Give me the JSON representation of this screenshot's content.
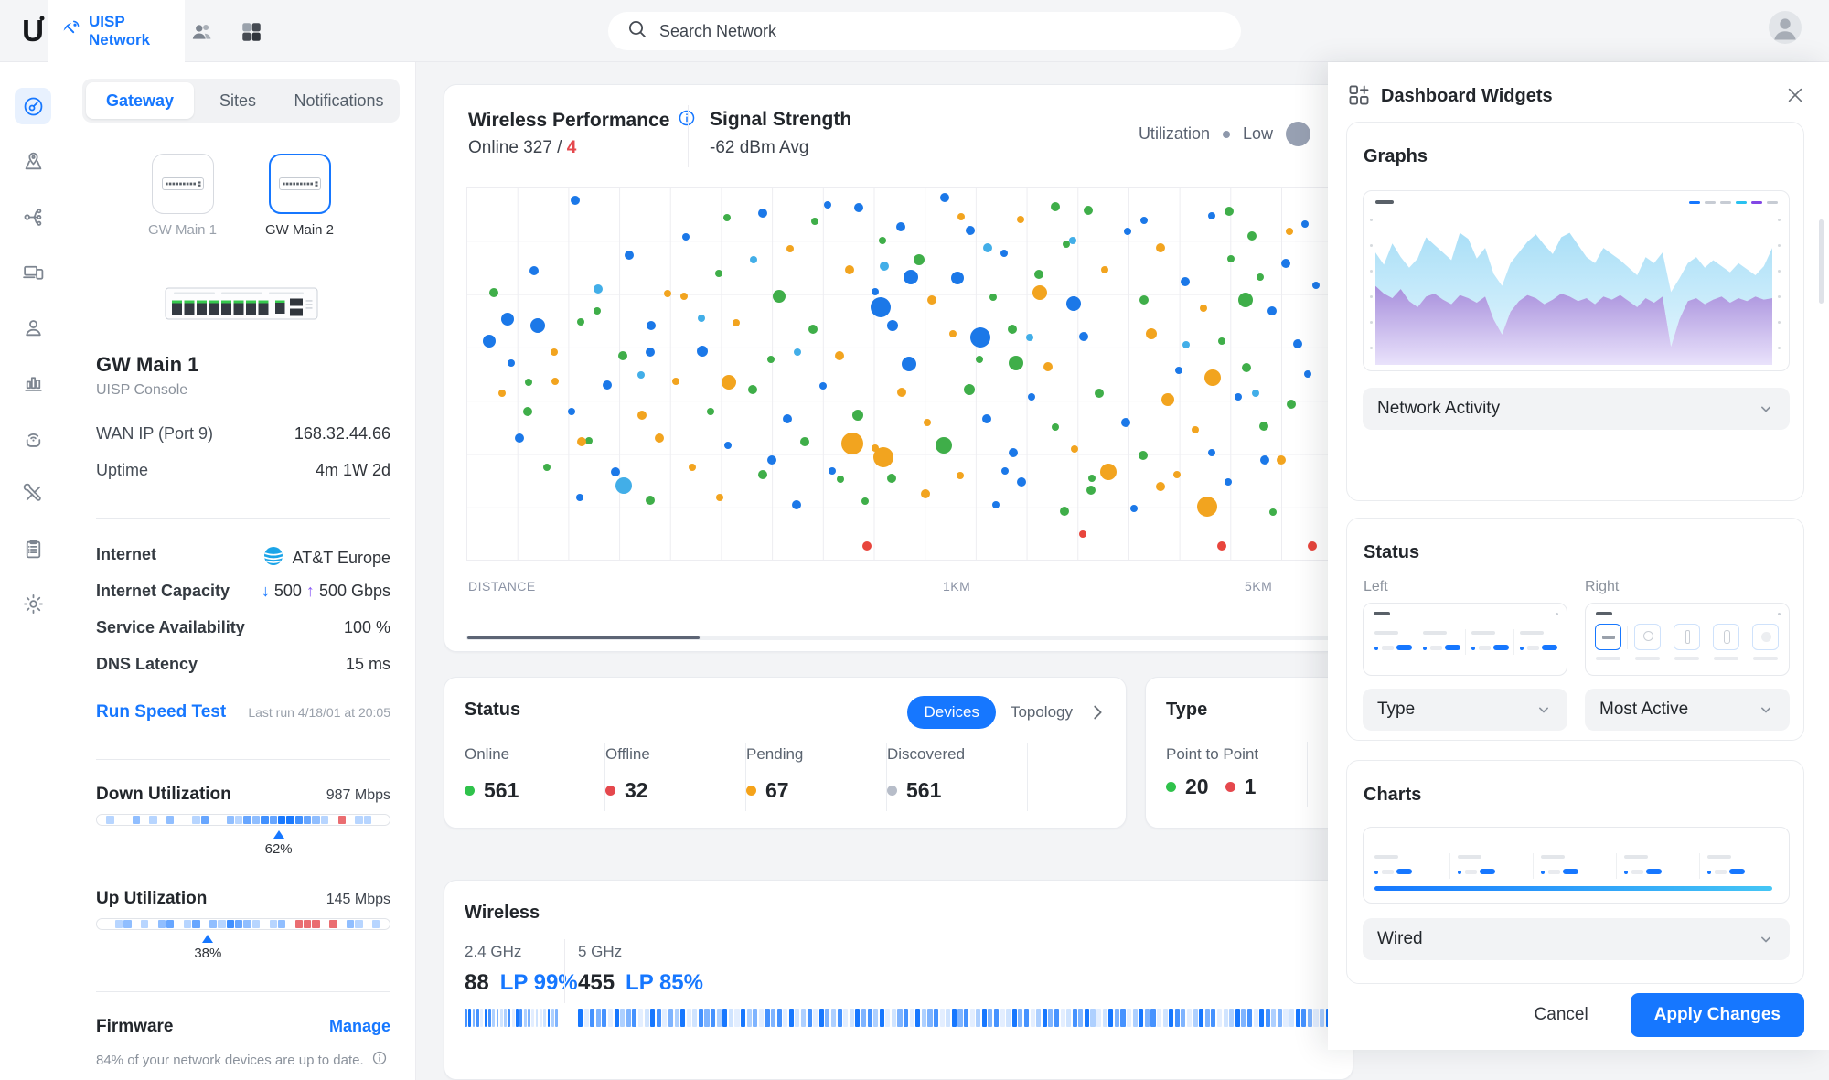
{
  "colors": {
    "accent": "#1677ff",
    "red": "#e5484d",
    "green": "#2fc24b",
    "orange": "#f5a31a",
    "grey_dot": "#b7bdc9",
    "purple": "#8b5cf6"
  },
  "topbar": {
    "app_name": "UISP Network",
    "search_placeholder": "Search Network"
  },
  "rail": {
    "items": [
      {
        "icon": "dashboard-icon",
        "active": true
      },
      {
        "icon": "map-pin-icon"
      },
      {
        "icon": "topology-icon"
      },
      {
        "icon": "devices-icon"
      },
      {
        "icon": "clients-icon"
      },
      {
        "icon": "statistics-icon"
      },
      {
        "icon": "wireless-maintenance-icon"
      },
      {
        "icon": "tools-icon"
      },
      {
        "icon": "logs-icon"
      },
      {
        "icon": "settings-icon"
      }
    ]
  },
  "left_panel": {
    "tabs": [
      {
        "label": "Gateway",
        "active": true
      },
      {
        "label": "Sites",
        "active": false
      },
      {
        "label": "Notifications",
        "active": false
      }
    ],
    "gateways": [
      {
        "label": "GW Main 1",
        "selected": false
      },
      {
        "label": "GW Main 2",
        "selected": true
      }
    ],
    "device": {
      "name": "GW Main 1",
      "type": "UISP Console"
    },
    "info_rows": [
      {
        "label": "WAN IP (Port 9)",
        "value": "168.32.44.66"
      },
      {
        "label": "Uptime",
        "value": "4m 1W 2d"
      }
    ],
    "internet": {
      "label": "Internet",
      "provider": "AT&T Europe"
    },
    "capacity": {
      "label": "Internet Capacity",
      "down_arrow": "↓",
      "down_value": "500",
      "up_arrow": "↑",
      "up_value": "500 Gbps"
    },
    "availability": {
      "label": "Service Availability",
      "value": "100 %"
    },
    "dns": {
      "label": "DNS Latency",
      "value": "15 ms"
    },
    "speed_test": {
      "action": "Run Speed Test",
      "last_run": "Last run 4/18/01 at 20:05"
    },
    "down_utilization": {
      "label": "Down Utilization",
      "value": "987 Mbps",
      "percent": 62,
      "percent_label": "62%",
      "segments": "0100201020013002132435543210901100"
    },
    "up_utilization": {
      "label": "Up Utilization",
      "value": "145 Mbps",
      "percent": 38,
      "percent_label": "38%",
      "segments": "0012010230130214321012099909021010"
    },
    "firmware": {
      "label": "Firmware",
      "action": "Manage",
      "note": "84% of your network devices are up to date."
    }
  },
  "performance": {
    "title": "Wireless Performance",
    "online_label": "Online 327 /",
    "alert_count": "4",
    "signal_label": "Signal Strength",
    "signal_value": "-62 dBm Avg",
    "legend_label": "Utilization",
    "legend_low": "Low",
    "x_axis_label": "DISTANCE",
    "tick_1": "1KM",
    "tick_2": "5KM"
  },
  "chart_data": {
    "type": "scatter",
    "title": "Wireless Performance",
    "x_axis": "DISTANCE",
    "x_ticks": [
      {
        "label": "1KM",
        "pos_pct": 56.5
      },
      {
        "label": "5KM",
        "pos_pct": 91
      }
    ],
    "legend": {
      "label": "Utilization",
      "sizes": [
        "Low"
      ]
    },
    "point_colors": [
      "#1b78e8",
      "#3fae49",
      "#f2a41f",
      "#e8453c",
      "#42aee8"
    ],
    "points": [
      [
        12.6,
        3.5,
        5,
        0
      ],
      [
        34.2,
        6.8,
        5,
        0
      ],
      [
        41.8,
        4.6,
        4,
        0
      ],
      [
        55.3,
        2.8,
        5,
        0
      ],
      [
        71.9,
        6.2,
        5,
        1
      ],
      [
        76.4,
        11.8,
        4,
        0
      ],
      [
        64.1,
        8.7,
        4,
        2
      ],
      [
        86.2,
        7.6,
        4,
        0
      ],
      [
        90.8,
        12.9,
        5,
        1
      ],
      [
        96.9,
        9.8,
        4,
        0
      ],
      [
        25.4,
        13.2,
        4,
        0
      ],
      [
        48.1,
        14.3,
        4,
        1
      ],
      [
        58.2,
        11.6,
        5,
        0
      ],
      [
        69.3,
        15.2,
        4,
        1
      ],
      [
        80.2,
        16.1,
        5,
        2
      ],
      [
        37.4,
        16.4,
        4,
        2
      ],
      [
        18.8,
        18.2,
        5,
        0
      ],
      [
        52.3,
        19.4,
        6,
        1
      ],
      [
        62.2,
        17.8,
        4,
        0
      ],
      [
        88.4,
        19.2,
        4,
        1
      ],
      [
        94.7,
        20.3,
        5,
        0
      ],
      [
        7.8,
        22.4,
        5,
        0
      ],
      [
        29.2,
        23.1,
        4,
        1
      ],
      [
        44.3,
        22.2,
        5,
        2
      ],
      [
        56.8,
        24.4,
        7,
        0
      ],
      [
        66.2,
        23.3,
        5,
        1
      ],
      [
        73.8,
        22.1,
        4,
        2
      ],
      [
        83.1,
        25.2,
        5,
        0
      ],
      [
        91.8,
        24.1,
        4,
        1
      ],
      [
        98.2,
        26.3,
        4,
        0
      ],
      [
        15.2,
        27.2,
        5,
        4
      ],
      [
        23.3,
        28.4,
        4,
        2
      ],
      [
        36.1,
        29.3,
        7,
        1
      ],
      [
        47.2,
        28.1,
        4,
        0
      ],
      [
        53.8,
        30.2,
        5,
        2
      ],
      [
        60.9,
        29.4,
        4,
        1
      ],
      [
        70.2,
        31.1,
        8,
        0
      ],
      [
        78.3,
        30.2,
        5,
        1
      ],
      [
        85.2,
        32.4,
        4,
        2
      ],
      [
        93.1,
        33.2,
        5,
        0
      ],
      [
        4.8,
        35.3,
        7,
        0
      ],
      [
        13.2,
        36.1,
        4,
        1
      ],
      [
        21.4,
        37.2,
        5,
        0
      ],
      [
        31.2,
        36.4,
        4,
        2
      ],
      [
        40.1,
        38.2,
        5,
        1
      ],
      [
        49.3,
        37.1,
        6,
        0
      ],
      [
        56.2,
        39.3,
        4,
        2
      ],
      [
        63.1,
        38.2,
        5,
        1
      ],
      [
        71.4,
        40.1,
        5,
        0
      ],
      [
        79.2,
        39.3,
        6,
        2
      ],
      [
        87.3,
        41.2,
        4,
        1
      ],
      [
        96.1,
        42.1,
        5,
        0
      ],
      [
        10.2,
        44.3,
        4,
        2
      ],
      [
        18.1,
        45.2,
        5,
        1
      ],
      [
        27.3,
        44.1,
        6,
        0
      ],
      [
        35.2,
        46.3,
        4,
        1
      ],
      [
        43.1,
        45.2,
        5,
        2
      ],
      [
        51.2,
        47.3,
        8,
        0
      ],
      [
        59.3,
        46.1,
        4,
        1
      ],
      [
        67.2,
        48.2,
        5,
        2
      ],
      [
        82.3,
        49.2,
        4,
        0
      ],
      [
        90.2,
        48.3,
        5,
        1
      ],
      [
        97.3,
        50.2,
        4,
        0
      ],
      [
        7.2,
        52.3,
        4,
        1
      ],
      [
        16.3,
        53.1,
        5,
        0
      ],
      [
        24.2,
        52.2,
        4,
        2
      ],
      [
        33.1,
        54.3,
        5,
        1
      ],
      [
        41.2,
        53.2,
        4,
        0
      ],
      [
        50.3,
        55.1,
        5,
        2
      ],
      [
        58.1,
        54.2,
        6,
        1
      ],
      [
        65.3,
        56.3,
        4,
        0
      ],
      [
        73.2,
        55.2,
        5,
        1
      ],
      [
        81.1,
        57.1,
        7,
        2
      ],
      [
        89.2,
        56.2,
        4,
        0
      ],
      [
        95.3,
        58.3,
        5,
        1
      ],
      [
        12.2,
        60.2,
        4,
        0
      ],
      [
        20.3,
        61.1,
        5,
        2
      ],
      [
        28.2,
        60.3,
        4,
        1
      ],
      [
        37.1,
        62.2,
        5,
        0
      ],
      [
        45.2,
        61.3,
        6,
        1
      ],
      [
        53.3,
        63.1,
        4,
        2
      ],
      [
        60.2,
        62.2,
        5,
        0
      ],
      [
        68.1,
        64.3,
        4,
        1
      ],
      [
        76.2,
        63.2,
        5,
        0
      ],
      [
        84.3,
        65.1,
        4,
        2
      ],
      [
        92.2,
        64.2,
        5,
        1
      ],
      [
        6.1,
        67.3,
        5,
        0
      ],
      [
        14.2,
        68.1,
        4,
        1
      ],
      [
        22.3,
        67.2,
        5,
        2
      ],
      [
        30.2,
        69.3,
        4,
        0
      ],
      [
        39.1,
        68.2,
        5,
        1
      ],
      [
        47.2,
        70.1,
        4,
        2
      ],
      [
        63.2,
        71.2,
        5,
        0
      ],
      [
        70.3,
        70.3,
        4,
        2
      ],
      [
        78.2,
        72.1,
        5,
        1
      ],
      [
        86.1,
        71.2,
        4,
        0
      ],
      [
        94.2,
        73.3,
        5,
        2
      ],
      [
        9.3,
        75.2,
        4,
        1
      ],
      [
        17.2,
        76.3,
        5,
        0
      ],
      [
        26.1,
        75.1,
        4,
        2
      ],
      [
        34.2,
        77.2,
        5,
        1
      ],
      [
        42.3,
        76.1,
        4,
        0
      ],
      [
        49.2,
        78.2,
        5,
        1
      ],
      [
        57.1,
        77.3,
        4,
        2
      ],
      [
        64.2,
        79.1,
        5,
        0
      ],
      [
        72.3,
        78.2,
        4,
        1
      ],
      [
        80.2,
        80.3,
        5,
        2
      ],
      [
        88.1,
        79.2,
        4,
        0
      ],
      [
        13.1,
        83.2,
        4,
        0
      ],
      [
        21.2,
        84.1,
        5,
        1
      ],
      [
        29.3,
        83.3,
        4,
        2
      ],
      [
        38.2,
        85.2,
        5,
        0
      ],
      [
        46.1,
        84.3,
        4,
        1
      ],
      [
        61.2,
        85.2,
        4,
        0
      ],
      [
        69.1,
        87.1,
        5,
        1
      ],
      [
        77.2,
        86.2,
        4,
        0
      ],
      [
        93.2,
        87.2,
        4,
        1
      ],
      [
        30.1,
        8.2,
        4,
        1
      ],
      [
        45.3,
        5.4,
        5,
        0
      ],
      [
        57.2,
        7.8,
        4,
        2
      ],
      [
        68.1,
        5.2,
        5,
        1
      ],
      [
        78.3,
        8.8,
        4,
        0
      ],
      [
        88.2,
        6.4,
        5,
        1
      ],
      [
        95.1,
        11.8,
        4,
        2
      ],
      [
        50.2,
        10.6,
        5,
        0
      ],
      [
        40.3,
        9.2,
        4,
        1
      ],
      [
        33.2,
        19.3,
        4,
        4
      ],
      [
        48.3,
        21.2,
        5,
        4
      ],
      [
        70.1,
        14.2,
        4,
        4
      ],
      [
        27.2,
        35.2,
        4,
        4
      ],
      [
        60.3,
        16.3,
        5,
        4
      ],
      [
        83.2,
        42.3,
        4,
        4
      ],
      [
        38.3,
        44.2,
        4,
        4
      ],
      [
        91.2,
        55.3,
        4,
        4
      ],
      [
        20.2,
        50.3,
        4,
        4
      ],
      [
        65.1,
        40.2,
        4,
        4
      ],
      [
        3.2,
        28.3,
        5,
        1
      ],
      [
        4.1,
        55.2,
        4,
        2
      ],
      [
        35.3,
        73.2,
        5,
        0
      ],
      [
        43.2,
        78.3,
        4,
        1
      ],
      [
        53.1,
        82.2,
        5,
        2
      ],
      [
        62.3,
        76.2,
        4,
        0
      ],
      [
        72.2,
        81.3,
        5,
        1
      ],
      [
        82.1,
        77.2,
        4,
        2
      ],
      [
        92.3,
        73.1,
        5,
        0
      ],
      [
        10.3,
        52.2,
        4,
        2
      ],
      [
        7.1,
        60.3,
        5,
        1
      ],
      [
        5.2,
        47.2,
        4,
        0
      ],
      [
        13.3,
        68.3,
        5,
        2
      ],
      [
        15.1,
        33.2,
        4,
        1
      ],
      [
        21.3,
        44.2,
        5,
        0
      ],
      [
        25.2,
        29.2,
        4,
        2
      ],
      [
        44.6,
        68.8,
        12,
        2
      ],
      [
        48.2,
        72.4,
        11,
        2
      ],
      [
        47.9,
        32.3,
        11,
        0
      ],
      [
        59.4,
        40.2,
        11,
        0
      ],
      [
        74.2,
        76.3,
        9,
        2
      ],
      [
        85.6,
        85.8,
        11,
        2
      ],
      [
        86.3,
        51.2,
        9,
        2
      ],
      [
        46.3,
        96.2,
        5,
        3
      ],
      [
        87.3,
        96.2,
        5,
        3
      ],
      [
        97.8,
        96.2,
        5,
        3
      ],
      [
        71.2,
        93.1,
        4,
        3
      ],
      [
        55.2,
        69.3,
        9,
        1
      ],
      [
        18.2,
        80.2,
        9,
        4
      ],
      [
        8.2,
        37.2,
        8,
        0
      ],
      [
        51.4,
        24.2,
        8,
        0
      ],
      [
        63.5,
        47.2,
        8,
        1
      ],
      [
        30.3,
        52.3,
        8,
        2
      ],
      [
        90.1,
        30.2,
        8,
        1
      ],
      [
        66.3,
        28.2,
        8,
        2
      ],
      [
        2.6,
        41.2,
        7,
        0
      ]
    ]
  },
  "status_card": {
    "title": "Status",
    "toggle": [
      {
        "label": "Devices",
        "active": true
      },
      {
        "label": "Topology",
        "active": false
      }
    ],
    "columns": [
      {
        "label": "Online",
        "value": "561",
        "color": "#2fc24b"
      },
      {
        "label": "Offline",
        "value": "32",
        "color": "#e5484d"
      },
      {
        "label": "Pending",
        "value": "67",
        "color": "#f5a31a"
      },
      {
        "label": "Discovered",
        "value": "561",
        "color": "#b7bdc9"
      }
    ]
  },
  "type_card": {
    "title": "Type",
    "row_label": "Point to Point",
    "counts": [
      {
        "value": "20",
        "color": "#2fc24b"
      },
      {
        "value": "1",
        "color": "#e5484d"
      }
    ]
  },
  "wireless_card": {
    "title": "Wireless",
    "bands": [
      {
        "label": "2.4 GHz",
        "count": "88",
        "lp": "LP 99%",
        "strip": "453405423124054230101523"
      },
      {
        "label": "5 GHz",
        "count": "455",
        "lp": "LP 85%",
        "strip": "504340523401540325014342510523043405124053240153425013405234015340253401534025340143520153402534015430253401253405423015430253"
      }
    ]
  },
  "widgets_panel": {
    "title": "Dashboard Widgets",
    "graphs": {
      "heading": "Graphs",
      "select_value": "Network Activity",
      "preview": {
        "legend_colors": [
          "#1677ff",
          "#c7ccd4",
          "#c7ccd4",
          "#29c1f0",
          "#8247e5",
          "#c7ccd4"
        ],
        "cyan": [
          0.74,
          0.66,
          0.8,
          0.71,
          0.64,
          0.7,
          0.84,
          0.79,
          0.74,
          0.69,
          0.87,
          0.83,
          0.7,
          0.77,
          0.6,
          0.52,
          0.67,
          0.74,
          0.81,
          0.86,
          0.79,
          0.73,
          0.84,
          0.87,
          0.79,
          0.71,
          0.67,
          0.77,
          0.73,
          0.69,
          0.64,
          0.59,
          0.71,
          0.67,
          0.74,
          0.48,
          0.57,
          0.67,
          0.71,
          0.64,
          0.69,
          0.65,
          0.61,
          0.67,
          0.63,
          0.59,
          0.65,
          0.77
        ],
        "purple": [
          0.52,
          0.47,
          0.44,
          0.5,
          0.42,
          0.38,
          0.45,
          0.47,
          0.43,
          0.4,
          0.46,
          0.44,
          0.41,
          0.45,
          0.3,
          0.2,
          0.35,
          0.42,
          0.46,
          0.44,
          0.4,
          0.43,
          0.47,
          0.45,
          0.42,
          0.44,
          0.4,
          0.45,
          0.43,
          0.46,
          0.42,
          0.38,
          0.44,
          0.41,
          0.45,
          0.12,
          0.3,
          0.42,
          0.44,
          0.4,
          0.43,
          0.45,
          0.41,
          0.44,
          0.42,
          0.45,
          0.43,
          0.44
        ]
      }
    },
    "status": {
      "heading": "Status",
      "left_label": "Left",
      "right_label": "Right",
      "left_select": "Type",
      "right_select": "Most Active"
    },
    "charts": {
      "heading": "Charts",
      "select_value": "Wired"
    },
    "footer": {
      "cancel": "Cancel",
      "apply": "Apply Changes"
    }
  }
}
